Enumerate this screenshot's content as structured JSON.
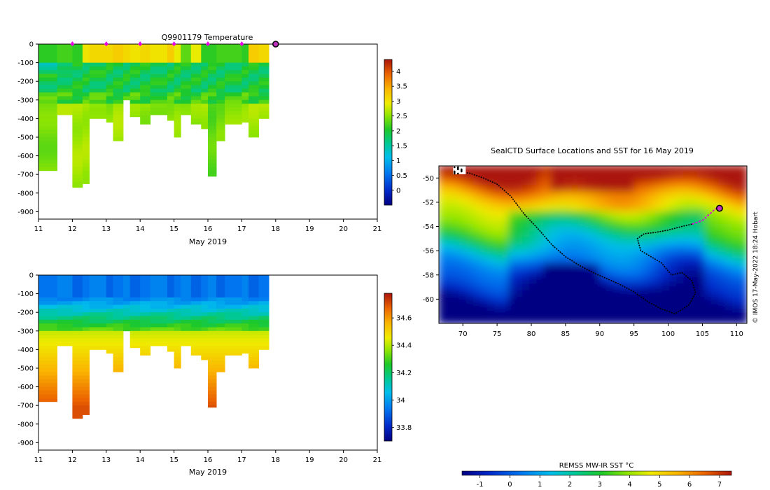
{
  "chart_data": [
    {
      "id": "temperature",
      "type": "heatmap",
      "title": "Q9901179  Temperature",
      "xlabel": "May 2019",
      "ylabel": "",
      "xlim": [
        11,
        21
      ],
      "ylim": [
        -940,
        0
      ],
      "xticks": [
        "11",
        "12",
        "13",
        "14",
        "15",
        "16",
        "17",
        "18",
        "19",
        "20",
        "21"
      ],
      "yticks": [
        "0",
        "-100",
        "-200",
        "-300",
        "-400",
        "-500",
        "-600",
        "-700",
        "-800",
        "-900"
      ],
      "colorbar": {
        "range": [
          -0.5,
          4.4
        ],
        "ticks": [
          "4",
          "3.5",
          "3",
          "2.5",
          "2",
          "1.5",
          "1",
          "0.5",
          "0"
        ]
      },
      "profile_markers_days": [
        12,
        13,
        14,
        15,
        16,
        17
      ],
      "current_day": 18,
      "profiles": [
        {
          "t0": 11.0,
          "t1": 11.55,
          "depth": 680,
          "surface": 2.1,
          "deep": 2.4
        },
        {
          "t0": 11.55,
          "t1": 12.0,
          "depth": 380,
          "surface": 2.2,
          "deep": 2.6
        },
        {
          "t0": 12.0,
          "t1": 12.3,
          "depth": 770,
          "surface": 2.1,
          "deep": 2.6
        },
        {
          "t0": 12.3,
          "t1": 12.5,
          "depth": 750,
          "surface": 3.0,
          "deep": 2.6
        },
        {
          "t0": 12.5,
          "t1": 13.0,
          "depth": 400,
          "surface": 3.1,
          "deep": 2.6
        },
        {
          "t0": 13.0,
          "t1": 13.2,
          "depth": 420,
          "surface": 3.1,
          "deep": 2.5
        },
        {
          "t0": 13.2,
          "t1": 13.5,
          "depth": 520,
          "surface": 3.2,
          "deep": 2.6
        },
        {
          "t0": 13.5,
          "t1": 13.7,
          "depth": 300,
          "surface": 3.1,
          "deep": 2.4
        },
        {
          "t0": 13.7,
          "t1": 14.0,
          "depth": 390,
          "surface": 3.0,
          "deep": 2.5
        },
        {
          "t0": 14.0,
          "t1": 14.3,
          "depth": 430,
          "surface": 3.1,
          "deep": 2.5
        },
        {
          "t0": 14.3,
          "t1": 14.8,
          "depth": 380,
          "surface": 3.0,
          "deep": 2.5
        },
        {
          "t0": 14.8,
          "t1": 15.0,
          "depth": 410,
          "surface": 3.2,
          "deep": 2.5
        },
        {
          "t0": 15.0,
          "t1": 15.2,
          "depth": 500,
          "surface": 2.9,
          "deep": 2.5
        },
        {
          "t0": 15.2,
          "t1": 15.5,
          "depth": 380,
          "surface": 2.3,
          "deep": 2.4
        },
        {
          "t0": 15.5,
          "t1": 15.8,
          "depth": 430,
          "surface": 2.9,
          "deep": 2.5
        },
        {
          "t0": 15.8,
          "t1": 16.0,
          "depth": 455,
          "surface": 2.1,
          "deep": 2.6
        },
        {
          "t0": 16.0,
          "t1": 16.25,
          "depth": 710,
          "surface": 2.1,
          "deep": 2.3
        },
        {
          "t0": 16.25,
          "t1": 16.5,
          "depth": 520,
          "surface": 2.2,
          "deep": 2.4
        },
        {
          "t0": 16.5,
          "t1": 17.0,
          "depth": 430,
          "surface": 2.2,
          "deep": 2.5
        },
        {
          "t0": 17.0,
          "t1": 17.2,
          "depth": 420,
          "surface": 2.1,
          "deep": 2.5
        },
        {
          "t0": 17.2,
          "t1": 17.5,
          "depth": 500,
          "surface": 3.2,
          "deep": 2.6
        },
        {
          "t0": 17.5,
          "t1": 17.8,
          "depth": 400,
          "surface": 3.1,
          "deep": 2.6
        }
      ]
    },
    {
      "id": "salinity",
      "type": "heatmap",
      "title": "",
      "xlabel": "May 2019",
      "ylabel": "",
      "xlim": [
        11,
        21
      ],
      "ylim": [
        -940,
        0
      ],
      "xticks": [
        "11",
        "12",
        "13",
        "14",
        "15",
        "16",
        "17",
        "18",
        "19",
        "20",
        "21"
      ],
      "yticks": [
        "0",
        "-100",
        "-200",
        "-300",
        "-400",
        "-500",
        "-600",
        "-700",
        "-800",
        "-900"
      ],
      "colorbar": {
        "range": [
          33.7,
          34.78
        ],
        "ticks": [
          "34.6",
          "34.4",
          "34.2",
          "34",
          "33.8"
        ]
      },
      "profiles": [
        {
          "t0": 11.0,
          "t1": 11.55,
          "depth": 680
        },
        {
          "t0": 11.55,
          "t1": 12.0,
          "depth": 380
        },
        {
          "t0": 12.0,
          "t1": 12.3,
          "depth": 770
        },
        {
          "t0": 12.3,
          "t1": 12.5,
          "depth": 750
        },
        {
          "t0": 12.5,
          "t1": 13.0,
          "depth": 400
        },
        {
          "t0": 13.0,
          "t1": 13.2,
          "depth": 420
        },
        {
          "t0": 13.2,
          "t1": 13.5,
          "depth": 520
        },
        {
          "t0": 13.5,
          "t1": 13.7,
          "depth": 300
        },
        {
          "t0": 13.7,
          "t1": 14.0,
          "depth": 390
        },
        {
          "t0": 14.0,
          "t1": 14.3,
          "depth": 430
        },
        {
          "t0": 14.3,
          "t1": 14.8,
          "depth": 380
        },
        {
          "t0": 14.8,
          "t1": 15.0,
          "depth": 410
        },
        {
          "t0": 15.0,
          "t1": 15.2,
          "depth": 500
        },
        {
          "t0": 15.2,
          "t1": 15.5,
          "depth": 380
        },
        {
          "t0": 15.5,
          "t1": 15.8,
          "depth": 430
        },
        {
          "t0": 15.8,
          "t1": 16.0,
          "depth": 455
        },
        {
          "t0": 16.0,
          "t1": 16.25,
          "depth": 710
        },
        {
          "t0": 16.25,
          "t1": 16.5,
          "depth": 520
        },
        {
          "t0": 16.5,
          "t1": 17.0,
          "depth": 430
        },
        {
          "t0": 17.0,
          "t1": 17.2,
          "depth": 420
        },
        {
          "t0": 17.2,
          "t1": 17.5,
          "depth": 500
        },
        {
          "t0": 17.5,
          "t1": 17.8,
          "depth": 400
        }
      ]
    },
    {
      "id": "sst-map",
      "type": "heatmap",
      "title": "SealCTD Surface Locations and SST for 16 May 2019",
      "xlim": [
        66.5,
        111.5
      ],
      "ylim": [
        -62,
        -49
      ],
      "xticks": [
        "70",
        "75",
        "80",
        "85",
        "90",
        "95",
        "100",
        "105",
        "110"
      ],
      "yticks": [
        "-50",
        "-52",
        "-54",
        "-56",
        "-58",
        "-60"
      ],
      "colorbar": {
        "label": "REMSS MW-IR SST °C",
        "range": [
          -1.6,
          7.4
        ],
        "ticks": [
          "-1",
          "0",
          "1",
          "2",
          "3",
          "4",
          "5",
          "6",
          "7"
        ]
      },
      "track": [
        [
          69.5,
          -49.5
        ],
        [
          71,
          -49.6
        ],
        [
          73,
          -50
        ],
        [
          75,
          -50.5
        ],
        [
          77,
          -51.5
        ],
        [
          79,
          -53
        ],
        [
          81,
          -54.2
        ],
        [
          83,
          -55.5
        ],
        [
          85,
          -56.5
        ],
        [
          87,
          -57.2
        ],
        [
          89,
          -57.8
        ],
        [
          91,
          -58.3
        ],
        [
          93,
          -58.8
        ],
        [
          95,
          -59.4
        ],
        [
          97,
          -60.2
        ],
        [
          99,
          -60.8
        ],
        [
          101,
          -61.2
        ],
        [
          103,
          -60.5
        ],
        [
          104,
          -59.5
        ],
        [
          103.5,
          -58.5
        ],
        [
          102,
          -57.8
        ],
        [
          100.5,
          -58
        ],
        [
          99,
          -57
        ],
        [
          97.5,
          -56.5
        ],
        [
          96,
          -56
        ],
        [
          95.5,
          -55
        ],
        [
          96.5,
          -54.6
        ],
        [
          98,
          -54.5
        ],
        [
          100,
          -54.3
        ],
        [
          102,
          -54
        ],
        [
          103.5,
          -53.8
        ]
      ],
      "recent_track": [
        [
          103.5,
          -53.8
        ],
        [
          105,
          -53.5
        ],
        [
          106,
          -53
        ],
        [
          107,
          -52.5
        ]
      ],
      "current_position": [
        107.5,
        -52.5
      ],
      "start_cluster": [
        69.5,
        -49.4
      ]
    }
  ],
  "side_text": "© IMOS 17-May-2022 18:24 Hobart"
}
